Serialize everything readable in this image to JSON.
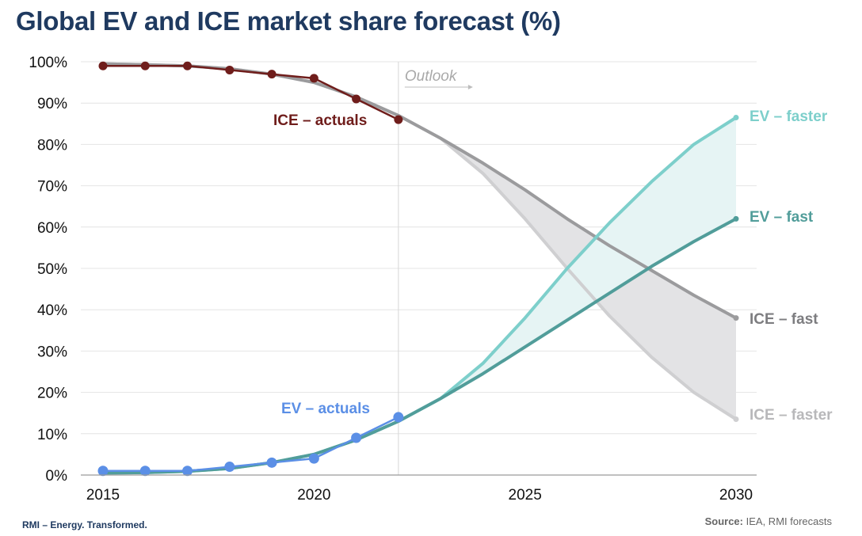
{
  "title": "Global EV and ICE market share forecast (%)",
  "footer": {
    "brand": "RMI – Energy. Transformed.",
    "source_label": "Source:",
    "source_text": "IEA, RMI forecasts"
  },
  "chart_data": {
    "type": "line",
    "title": "Global EV and ICE market share forecast (%)",
    "xlabel": "",
    "ylabel": "",
    "xlim": [
      2015,
      2030
    ],
    "ylim": [
      0,
      100
    ],
    "x_ticks": [
      2015,
      2020,
      2025,
      2030
    ],
    "x_tick_labels": [
      "2015",
      "2020",
      "2025",
      "2030"
    ],
    "y_ticks": [
      0,
      10,
      20,
      30,
      40,
      50,
      60,
      70,
      80,
      90,
      100
    ],
    "y_tick_labels": [
      "0%",
      "10%",
      "20%",
      "30%",
      "40%",
      "50%",
      "60%",
      "70%",
      "80%",
      "90%",
      "100%"
    ],
    "grid": true,
    "divider_year": 2022,
    "outlook_label": "Outlook",
    "series": [
      {
        "name": "ICE – actuals",
        "color": "#6f1d1b",
        "markers": true,
        "x": [
          2015,
          2016,
          2017,
          2018,
          2019,
          2020,
          2021,
          2022
        ],
        "values": [
          99,
          99,
          99,
          98,
          97,
          96,
          91,
          86
        ]
      },
      {
        "name": "EV – actuals",
        "color": "#5b8fe6",
        "markers": true,
        "x": [
          2015,
          2016,
          2017,
          2018,
          2019,
          2020,
          2021,
          2022
        ],
        "values": [
          1,
          1,
          1,
          2,
          3,
          4,
          9,
          14
        ]
      },
      {
        "name": "ICE – fast",
        "color": "#9b9b9d",
        "markers": false,
        "x": [
          2015,
          2016,
          2017,
          2018,
          2019,
          2020,
          2021,
          2022,
          2023,
          2024,
          2025,
          2026,
          2027,
          2028,
          2029,
          2030
        ],
        "values": [
          99.5,
          99.3,
          99,
          98.3,
          97,
          95,
          91.5,
          87,
          81.5,
          75.5,
          69,
          62,
          55.5,
          49.5,
          43.5,
          38
        ]
      },
      {
        "name": "ICE – faster",
        "color": "#cfcfd1",
        "markers": false,
        "x": [
          2015,
          2016,
          2017,
          2018,
          2019,
          2020,
          2021,
          2022,
          2023,
          2024,
          2025,
          2026,
          2027,
          2028,
          2029,
          2030
        ],
        "values": [
          99.5,
          99.3,
          99,
          98.3,
          97,
          95,
          91.5,
          87,
          81.5,
          73,
          62,
          50,
          38.5,
          28.5,
          20,
          13.5
        ]
      },
      {
        "name": "EV – fast",
        "color": "#519d9a",
        "markers": false,
        "x": [
          2015,
          2016,
          2017,
          2018,
          2019,
          2020,
          2021,
          2022,
          2023,
          2024,
          2025,
          2026,
          2027,
          2028,
          2029,
          2030
        ],
        "values": [
          0.5,
          0.6,
          0.9,
          1.6,
          3,
          5,
          8.5,
          13,
          18.5,
          24.5,
          31,
          37.5,
          44,
          50.5,
          56.5,
          62
        ]
      },
      {
        "name": "EV – faster",
        "color": "#7dcfcb",
        "markers": false,
        "x": [
          2015,
          2016,
          2017,
          2018,
          2019,
          2020,
          2021,
          2022,
          2023,
          2024,
          2025,
          2026,
          2027,
          2028,
          2029,
          2030
        ],
        "values": [
          0.5,
          0.6,
          0.9,
          1.6,
          3,
          5,
          8.5,
          13,
          18.5,
          27,
          38,
          50,
          61,
          71,
          80,
          86.5
        ]
      }
    ],
    "bands": [
      {
        "between": [
          "ICE – fast",
          "ICE – faster"
        ],
        "from": 2022,
        "color": "#e3e3e5"
      },
      {
        "between": [
          "EV – faster",
          "EV – fast"
        ],
        "from": 2022,
        "color": "#e6f4f4"
      }
    ],
    "annotations": [
      {
        "text": "ICE – actuals",
        "color": "#6f1d1b"
      },
      {
        "text": "EV – actuals",
        "color": "#5b8fe6"
      },
      {
        "text": "EV – faster",
        "color": "#7dcfcb"
      },
      {
        "text": "EV – fast",
        "color": "#519d9a"
      },
      {
        "text": "ICE – fast",
        "color": "#7d7d80"
      },
      {
        "text": "ICE – faster",
        "color": "#b8b8ba"
      }
    ]
  }
}
